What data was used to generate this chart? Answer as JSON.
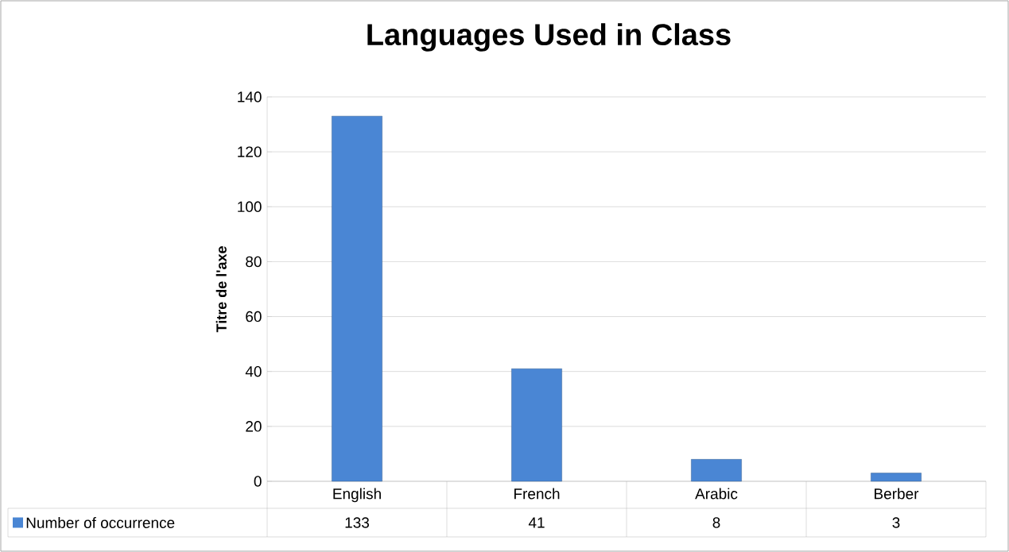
{
  "chart_data": {
    "type": "bar",
    "title": "Languages Used in Class",
    "ylabel": "Titre de l'axe",
    "categories": [
      "English",
      "French",
      "Arabic",
      "Berber"
    ],
    "series": [
      {
        "name": "Number of occurrence",
        "color": "#4a86d4",
        "values": [
          133,
          41,
          8,
          3
        ]
      }
    ],
    "ylim": [
      0,
      140
    ],
    "yticks": [
      0,
      20,
      40,
      60,
      80,
      100,
      120,
      140
    ],
    "grid": "y",
    "legend": "bottom",
    "data_labels": true
  }
}
